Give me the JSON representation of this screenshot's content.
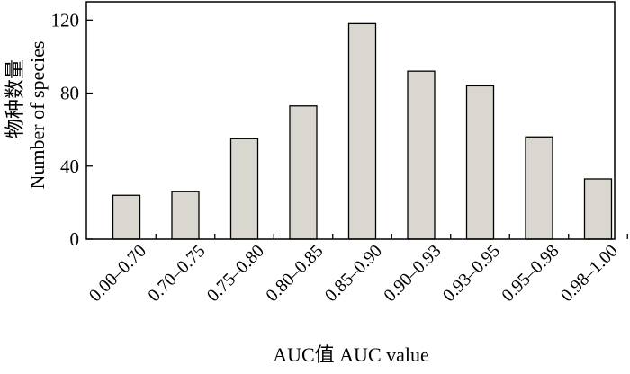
{
  "chart_data": {
    "type": "bar",
    "categories": [
      "0.00–0.70",
      "0.70–0.75",
      "0.75–0.80",
      "0.80–0.85",
      "0.85–0.90",
      "0.90–0.93",
      "0.93–0.95",
      "0.95–0.98",
      "0.98–1.00"
    ],
    "values": [
      24,
      26,
      55,
      73,
      118,
      92,
      84,
      56,
      33
    ],
    "xlabel": "AUC值 AUC value",
    "ylabel_cn": "物种数量",
    "ylabel_en": "Number of species",
    "ylim": [
      0,
      130
    ],
    "yticks": [
      0,
      40,
      80,
      120
    ],
    "grid": false,
    "bar_color": "#d9d7cf"
  }
}
